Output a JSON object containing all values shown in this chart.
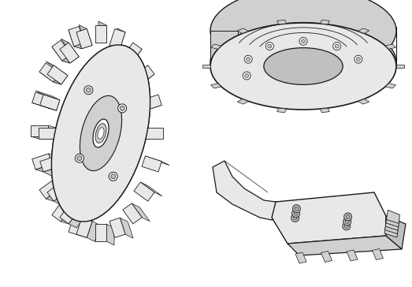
{
  "background_color": "#ffffff",
  "figure_width": 5.23,
  "figure_height": 3.64,
  "dpi": 100,
  "lc": "#1a1a1a",
  "fc": "#ffffff",
  "gray1": "#e8e8e8",
  "gray2": "#d0d0d0",
  "gray3": "#c0c0c0",
  "gray4": "#b0b0b0"
}
